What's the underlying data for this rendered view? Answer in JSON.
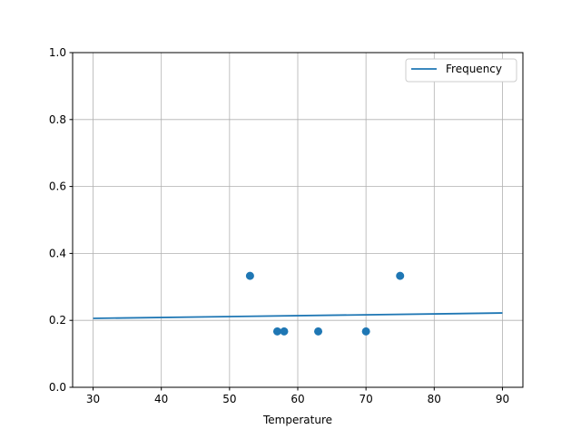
{
  "chart_data": {
    "type": "scatter",
    "title": "",
    "xlabel": "Temperature",
    "ylabel": "",
    "xlim": [
      27,
      93
    ],
    "ylim": [
      0,
      1.0
    ],
    "xticks": [
      30,
      40,
      50,
      60,
      70,
      80,
      90
    ],
    "yticks": [
      0.0,
      0.2,
      0.4,
      0.6,
      0.8,
      1.0
    ],
    "xtick_labels": [
      "30",
      "40",
      "50",
      "60",
      "70",
      "80",
      "90"
    ],
    "ytick_labels": [
      "0.0",
      "0.2",
      "0.4",
      "0.6",
      "0.8",
      "1.0"
    ],
    "grid": true,
    "legend_placement": "top-right",
    "color": "#1f77b4",
    "points": [
      {
        "x": 53,
        "y": 0.333
      },
      {
        "x": 57,
        "y": 0.167
      },
      {
        "x": 58,
        "y": 0.167
      },
      {
        "x": 63,
        "y": 0.167
      },
      {
        "x": 70,
        "y": 0.167
      },
      {
        "x": 75,
        "y": 0.333
      }
    ],
    "series": [
      {
        "name": "Frequency",
        "type": "line",
        "x": [
          30,
          90
        ],
        "y": [
          0.206,
          0.222
        ]
      }
    ]
  }
}
